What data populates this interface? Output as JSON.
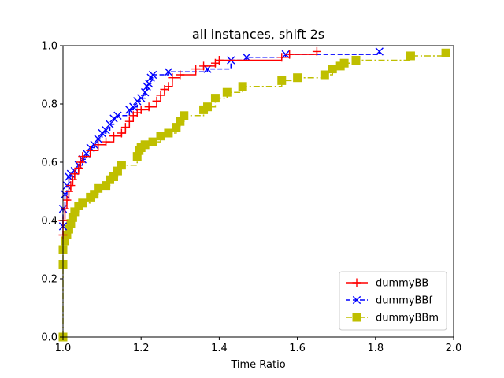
{
  "chart_data": {
    "type": "line",
    "title": "all instances, shift 2s",
    "xlabel": "Time Ratio",
    "ylabel": "",
    "xlim": [
      1.0,
      2.0
    ],
    "ylim": [
      0.0,
      1.0
    ],
    "x_ticks": [
      "1.0",
      "1.2",
      "1.4",
      "1.6",
      "1.8",
      "2.0"
    ],
    "y_ticks": [
      "0.0",
      "0.2",
      "0.4",
      "0.6",
      "0.8",
      "1.0"
    ],
    "grid": false,
    "legend_position": "bottom-right",
    "series": [
      {
        "name": "dummyBB",
        "color": "#ff0000",
        "line_style": "solid",
        "marker": "plus",
        "points": [
          [
            1.0,
            0.35
          ],
          [
            1.0,
            0.4
          ],
          [
            1.005,
            0.44
          ],
          [
            1.01,
            0.47
          ],
          [
            1.015,
            0.5
          ],
          [
            1.02,
            0.52
          ],
          [
            1.025,
            0.54
          ],
          [
            1.03,
            0.56
          ],
          [
            1.04,
            0.58
          ],
          [
            1.045,
            0.6
          ],
          [
            1.05,
            0.62
          ],
          [
            1.07,
            0.64
          ],
          [
            1.09,
            0.66
          ],
          [
            1.11,
            0.67
          ],
          [
            1.13,
            0.69
          ],
          [
            1.15,
            0.7
          ],
          [
            1.16,
            0.72
          ],
          [
            1.17,
            0.74
          ],
          [
            1.18,
            0.76
          ],
          [
            1.19,
            0.77
          ],
          [
            1.2,
            0.78
          ],
          [
            1.22,
            0.79
          ],
          [
            1.24,
            0.81
          ],
          [
            1.25,
            0.83
          ],
          [
            1.26,
            0.85
          ],
          [
            1.27,
            0.86
          ],
          [
            1.28,
            0.89
          ],
          [
            1.3,
            0.9
          ],
          [
            1.34,
            0.92
          ],
          [
            1.36,
            0.93
          ],
          [
            1.39,
            0.94
          ],
          [
            1.4,
            0.95
          ],
          [
            1.56,
            0.96
          ],
          [
            1.58,
            0.97
          ],
          [
            1.65,
            0.98
          ]
        ]
      },
      {
        "name": "dummyBBf",
        "color": "#0000ff",
        "line_style": "dashed",
        "marker": "x",
        "points": [
          [
            1.0,
            0.38
          ],
          [
            1.0,
            0.44
          ],
          [
            1.005,
            0.49
          ],
          [
            1.01,
            0.52
          ],
          [
            1.015,
            0.55
          ],
          [
            1.02,
            0.56
          ],
          [
            1.03,
            0.57
          ],
          [
            1.04,
            0.59
          ],
          [
            1.05,
            0.61
          ],
          [
            1.06,
            0.63
          ],
          [
            1.07,
            0.65
          ],
          [
            1.08,
            0.66
          ],
          [
            1.09,
            0.68
          ],
          [
            1.1,
            0.7
          ],
          [
            1.11,
            0.71
          ],
          [
            1.12,
            0.73
          ],
          [
            1.13,
            0.75
          ],
          [
            1.14,
            0.76
          ],
          [
            1.17,
            0.78
          ],
          [
            1.18,
            0.79
          ],
          [
            1.19,
            0.81
          ],
          [
            1.2,
            0.82
          ],
          [
            1.21,
            0.84
          ],
          [
            1.215,
            0.86
          ],
          [
            1.22,
            0.87
          ],
          [
            1.225,
            0.89
          ],
          [
            1.23,
            0.9
          ],
          [
            1.27,
            0.91
          ],
          [
            1.37,
            0.92
          ],
          [
            1.43,
            0.95
          ],
          [
            1.47,
            0.96
          ],
          [
            1.57,
            0.97
          ],
          [
            1.81,
            0.98
          ]
        ]
      },
      {
        "name": "dummyBBm",
        "color": "#bfbf00",
        "line_style": "dashdot",
        "marker": "square",
        "points": [
          [
            1.0,
            0.0
          ],
          [
            1.0,
            0.25
          ],
          [
            1.0,
            0.3
          ],
          [
            1.005,
            0.33
          ],
          [
            1.01,
            0.35
          ],
          [
            1.015,
            0.37
          ],
          [
            1.02,
            0.39
          ],
          [
            1.025,
            0.41
          ],
          [
            1.03,
            0.43
          ],
          [
            1.04,
            0.45
          ],
          [
            1.05,
            0.46
          ],
          [
            1.07,
            0.48
          ],
          [
            1.08,
            0.49
          ],
          [
            1.09,
            0.51
          ],
          [
            1.11,
            0.52
          ],
          [
            1.12,
            0.54
          ],
          [
            1.13,
            0.55
          ],
          [
            1.14,
            0.57
          ],
          [
            1.15,
            0.59
          ],
          [
            1.19,
            0.62
          ],
          [
            1.195,
            0.64
          ],
          [
            1.2,
            0.65
          ],
          [
            1.21,
            0.66
          ],
          [
            1.23,
            0.67
          ],
          [
            1.25,
            0.69
          ],
          [
            1.27,
            0.7
          ],
          [
            1.29,
            0.72
          ],
          [
            1.3,
            0.74
          ],
          [
            1.31,
            0.76
          ],
          [
            1.36,
            0.78
          ],
          [
            1.37,
            0.79
          ],
          [
            1.39,
            0.82
          ],
          [
            1.42,
            0.84
          ],
          [
            1.46,
            0.86
          ],
          [
            1.56,
            0.88
          ],
          [
            1.6,
            0.89
          ],
          [
            1.67,
            0.9
          ],
          [
            1.69,
            0.92
          ],
          [
            1.71,
            0.93
          ],
          [
            1.72,
            0.94
          ],
          [
            1.75,
            0.95
          ],
          [
            1.89,
            0.965
          ],
          [
            1.98,
            0.975
          ]
        ]
      }
    ]
  }
}
